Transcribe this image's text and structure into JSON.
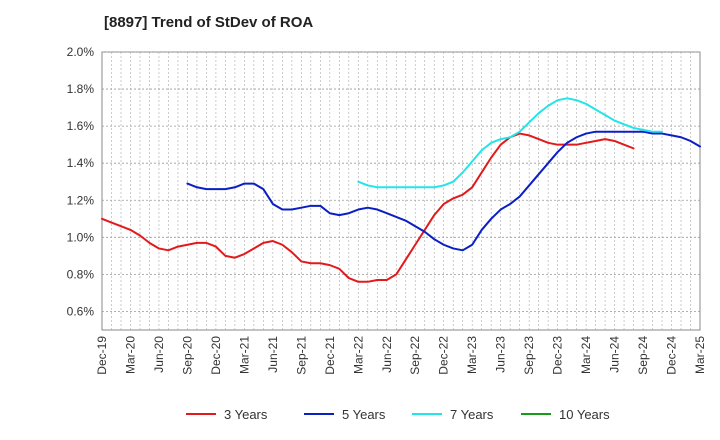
{
  "chart_data": {
    "type": "line",
    "title": "[8897]  Trend of StDev of ROA",
    "xlabel": "",
    "ylabel": "",
    "ylim": [
      0.5,
      2.0
    ],
    "yticks": [
      "2.0%",
      "1.8%",
      "1.6%",
      "1.4%",
      "1.2%",
      "1.0%",
      "0.8%",
      "0.6%"
    ],
    "ytick_values": [
      2.0,
      1.8,
      1.6,
      1.4,
      1.2,
      1.0,
      0.8,
      0.6
    ],
    "x_categories": [
      "Dec-19",
      "Mar-20",
      "Jun-20",
      "Sep-20",
      "Dec-20",
      "Mar-21",
      "Jun-21",
      "Sep-21",
      "Dec-21",
      "Mar-22",
      "Jun-22",
      "Sep-22",
      "Dec-22",
      "Mar-23",
      "Jun-23",
      "Sep-23",
      "Dec-23",
      "Mar-24",
      "Jun-24",
      "Sep-24",
      "Dec-24",
      "Mar-25"
    ],
    "grid": true,
    "legend_position": "bottom",
    "series": [
      {
        "name": "3 Years",
        "color": "#e31a1c",
        "start_index": 0,
        "values": [
          1.1,
          1.08,
          1.06,
          1.04,
          1.01,
          0.97,
          0.94,
          0.93,
          0.95,
          0.96,
          0.97,
          0.97,
          0.95,
          0.9,
          0.89,
          0.91,
          0.94,
          0.97,
          0.98,
          0.96,
          0.92,
          0.87,
          0.86,
          0.86,
          0.85,
          0.83,
          0.78,
          0.76,
          0.76,
          0.77,
          0.77,
          0.8,
          0.88,
          0.96,
          1.04,
          1.12,
          1.18,
          1.21,
          1.23,
          1.27,
          1.35,
          1.43,
          1.5,
          1.54,
          1.56,
          1.55,
          1.53,
          1.51,
          1.5,
          1.5,
          1.5,
          1.51,
          1.52,
          1.53,
          1.52,
          1.5,
          1.48
        ]
      },
      {
        "name": "5 Years",
        "color": "#0a1fc4",
        "start_index": 9,
        "values": [
          1.29,
          1.27,
          1.26,
          1.26,
          1.26,
          1.27,
          1.29,
          1.29,
          1.26,
          1.18,
          1.15,
          1.15,
          1.16,
          1.17,
          1.17,
          1.13,
          1.12,
          1.13,
          1.15,
          1.16,
          1.15,
          1.13,
          1.11,
          1.09,
          1.06,
          1.03,
          0.99,
          0.96,
          0.94,
          0.93,
          0.96,
          1.04,
          1.1,
          1.15,
          1.18,
          1.22,
          1.28,
          1.34,
          1.4,
          1.46,
          1.51,
          1.54,
          1.56,
          1.57,
          1.57,
          1.57,
          1.57,
          1.57,
          1.57,
          1.56,
          1.56,
          1.55,
          1.54,
          1.52,
          1.49
        ]
      },
      {
        "name": "7 Years",
        "color": "#22e5e9",
        "start_index": 27,
        "values": [
          1.3,
          1.28,
          1.27,
          1.27,
          1.27,
          1.27,
          1.27,
          1.27,
          1.27,
          1.28,
          1.3,
          1.35,
          1.41,
          1.47,
          1.51,
          1.53,
          1.54,
          1.57,
          1.62,
          1.67,
          1.71,
          1.74,
          1.75,
          1.74,
          1.72,
          1.69,
          1.66,
          1.63,
          1.61,
          1.59,
          1.58,
          1.57,
          1.57
        ]
      },
      {
        "name": "10 Years",
        "color": "#1a9a1a",
        "start_index": 0,
        "values": []
      }
    ]
  }
}
